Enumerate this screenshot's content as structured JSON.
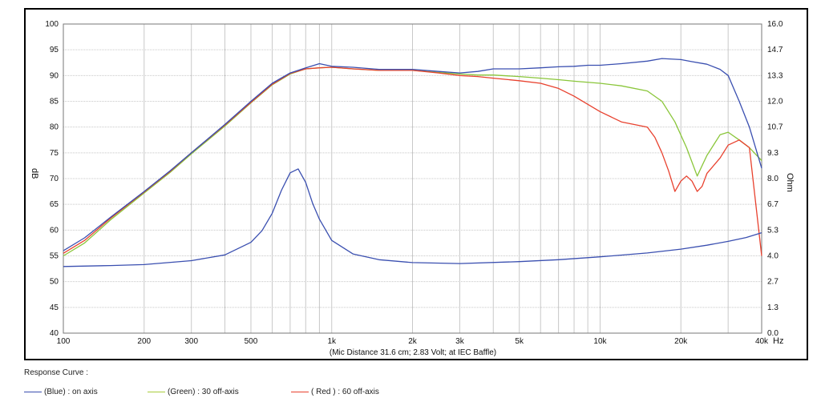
{
  "chart_data": {
    "type": "line",
    "caption": "(Mic Distance 31.6 cm; 2.83 Volt; at IEC Baffle)",
    "xlabel_unit": "Hz",
    "ylabel_left": "dB",
    "ylabel_right": "Ohm",
    "x_scale": "log",
    "xlim": [
      100,
      40000
    ],
    "ylim_left": [
      40,
      100
    ],
    "ylim_right": [
      0.0,
      16.0
    ],
    "grid": true,
    "x_tick_labels": [
      {
        "value": 100,
        "label": "100"
      },
      {
        "value": 200,
        "label": "200"
      },
      {
        "value": 300,
        "label": "300"
      },
      {
        "value": 500,
        "label": "500"
      },
      {
        "value": 1000,
        "label": "1k"
      },
      {
        "value": 2000,
        "label": "2k"
      },
      {
        "value": 3000,
        "label": "3k"
      },
      {
        "value": 5000,
        "label": "5k"
      },
      {
        "value": 10000,
        "label": "10k"
      },
      {
        "value": 20000,
        "label": "20k"
      },
      {
        "value": 40000,
        "label": "40k"
      }
    ],
    "y_left_ticks": [
      "100",
      "95",
      "90",
      "85",
      "80",
      "75",
      "70",
      "65",
      "60",
      "55",
      "50",
      "45",
      "40"
    ],
    "y_right_ticks": [
      "16.0",
      "14.7",
      "13.3",
      "12.0",
      "10.7",
      "9.3",
      "8.0",
      "6.7",
      "5.3",
      "4.0",
      "2.7",
      "1.3",
      "0.0"
    ],
    "series": [
      {
        "name": "(Blue) : on axis",
        "color": "#3a4fb0",
        "axis": "left",
        "x": [
          100,
          120,
          150,
          200,
          250,
          300,
          400,
          500,
          600,
          700,
          800,
          900,
          1000,
          1200,
          1500,
          2000,
          2500,
          3000,
          3500,
          4000,
          5000,
          6000,
          7000,
          8000,
          9000,
          10000,
          12000,
          15000,
          17000,
          20000,
          22000,
          25000,
          28000,
          30000,
          33000,
          36000,
          40000
        ],
        "y": [
          56.0,
          58.5,
          62.5,
          67.5,
          71.5,
          75.0,
          80.5,
          85.0,
          88.5,
          90.5,
          91.5,
          92.3,
          91.8,
          91.6,
          91.2,
          91.2,
          90.8,
          90.5,
          90.8,
          91.3,
          91.3,
          91.5,
          91.7,
          91.8,
          92.0,
          92.0,
          92.3,
          92.8,
          93.3,
          93.1,
          92.7,
          92.2,
          91.2,
          90.0,
          85.0,
          80.0,
          72.0
        ]
      },
      {
        "name": "(Green) : 30 off-axis",
        "color": "#8ac63a",
        "axis": "left",
        "x": [
          100,
          120,
          150,
          200,
          250,
          300,
          400,
          500,
          600,
          700,
          800,
          900,
          1000,
          1200,
          1500,
          2000,
          2500,
          3000,
          3500,
          4000,
          5000,
          6000,
          7000,
          8000,
          10000,
          12000,
          15000,
          17000,
          19000,
          21000,
          23000,
          25000,
          28000,
          30000,
          33000,
          36000,
          40000
        ],
        "y": [
          55.0,
          57.5,
          62.0,
          67.2,
          71.2,
          74.8,
          80.2,
          84.7,
          88.2,
          90.3,
          91.3,
          91.5,
          91.6,
          91.3,
          91.0,
          91.0,
          90.6,
          90.3,
          90.1,
          90.1,
          89.8,
          89.5,
          89.2,
          88.9,
          88.5,
          88.0,
          87.0,
          85.0,
          81.0,
          76.0,
          70.5,
          74.5,
          78.5,
          79.0,
          77.5,
          76.0,
          73.5
        ]
      },
      {
        "name": "( Red ) : 60 off-axis",
        "color": "#e8412e",
        "axis": "left",
        "x": [
          100,
          120,
          150,
          200,
          250,
          300,
          400,
          500,
          600,
          700,
          800,
          900,
          1000,
          1200,
          1500,
          2000,
          2500,
          3000,
          3500,
          4000,
          5000,
          6000,
          7000,
          8000,
          10000,
          12000,
          15000,
          16000,
          17000,
          18000,
          19000,
          20000,
          21000,
          22000,
          23000,
          24000,
          25000,
          28000,
          30000,
          33000,
          36000,
          40000
        ],
        "y": [
          55.5,
          58.0,
          62.3,
          67.4,
          71.4,
          75.0,
          80.4,
          84.8,
          88.3,
          90.4,
          91.3,
          91.5,
          91.6,
          91.3,
          91.0,
          91.0,
          90.5,
          90.0,
          89.8,
          89.5,
          89.0,
          88.5,
          87.5,
          86.0,
          83.0,
          81.0,
          80.0,
          78.0,
          75.0,
          71.5,
          67.5,
          69.5,
          70.5,
          69.5,
          67.5,
          68.5,
          71.0,
          74.0,
          76.5,
          77.5,
          76.0,
          55.0
        ]
      },
      {
        "name": "Impedance",
        "color": "#3a4fb0",
        "axis": "right",
        "x": [
          100,
          150,
          200,
          300,
          400,
          500,
          550,
          600,
          650,
          700,
          750,
          800,
          850,
          900,
          1000,
          1200,
          1500,
          2000,
          3000,
          5000,
          7000,
          10000,
          15000,
          20000,
          25000,
          30000,
          35000,
          40000
        ],
        "y": [
          3.45,
          3.5,
          3.55,
          3.75,
          4.05,
          4.7,
          5.3,
          6.2,
          7.4,
          8.3,
          8.5,
          7.8,
          6.7,
          5.9,
          4.8,
          4.1,
          3.8,
          3.65,
          3.6,
          3.7,
          3.8,
          3.95,
          4.15,
          4.35,
          4.55,
          4.75,
          4.95,
          5.2
        ]
      }
    ]
  },
  "legend": {
    "title": "Response Curve :",
    "items": [
      {
        "label": "(Blue)  : on axis",
        "color": "#3a4fb0"
      },
      {
        "label": "(Green) : 30 off-axis",
        "color": "#a8cc3c"
      },
      {
        "label": "( Red ) : 60 off-axis",
        "color": "#e8412e"
      }
    ]
  }
}
